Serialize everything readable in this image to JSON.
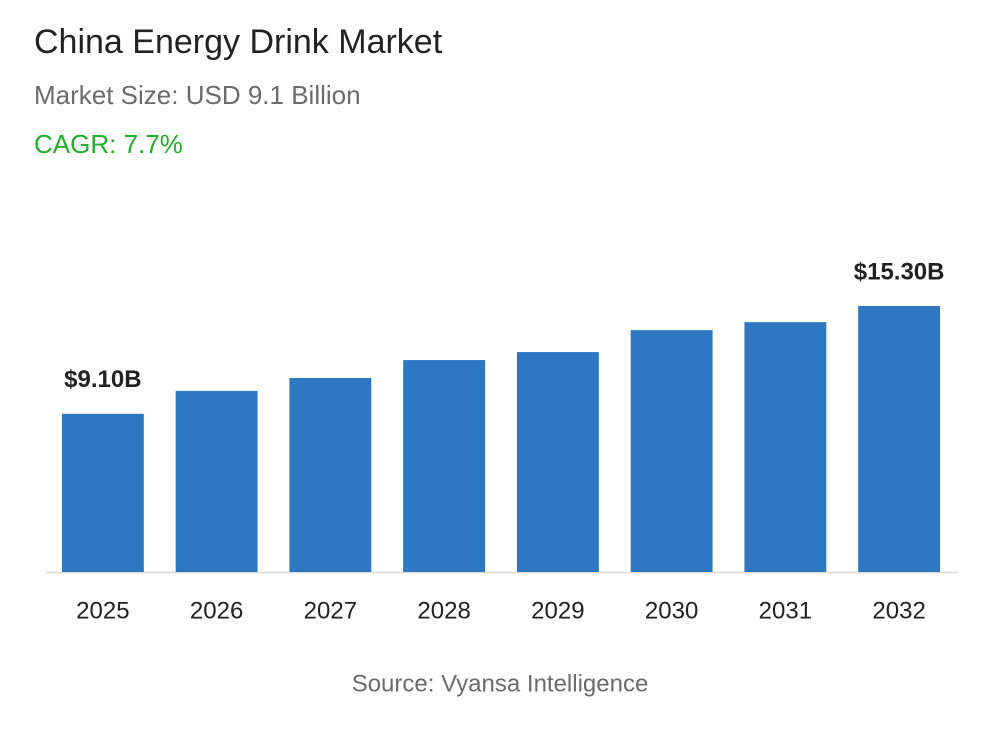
{
  "chart_data": {
    "type": "bar",
    "title": "China Energy Drink Market",
    "subtitle": "Market Size: USD 9.1 Billion",
    "cagr": "CAGR: 7.7%",
    "source": "Source: Vyansa Intelligence",
    "categories": [
      "2025",
      "2026",
      "2027",
      "2028",
      "2029",
      "2030",
      "2031",
      "2032"
    ],
    "values": [
      9.1,
      10.42,
      11.16,
      12.19,
      12.65,
      13.91,
      14.37,
      15.3
    ],
    "value_labels": [
      "$9.10B",
      null,
      null,
      null,
      null,
      null,
      null,
      "$15.30B"
    ],
    "color": "#2e78c2"
  }
}
